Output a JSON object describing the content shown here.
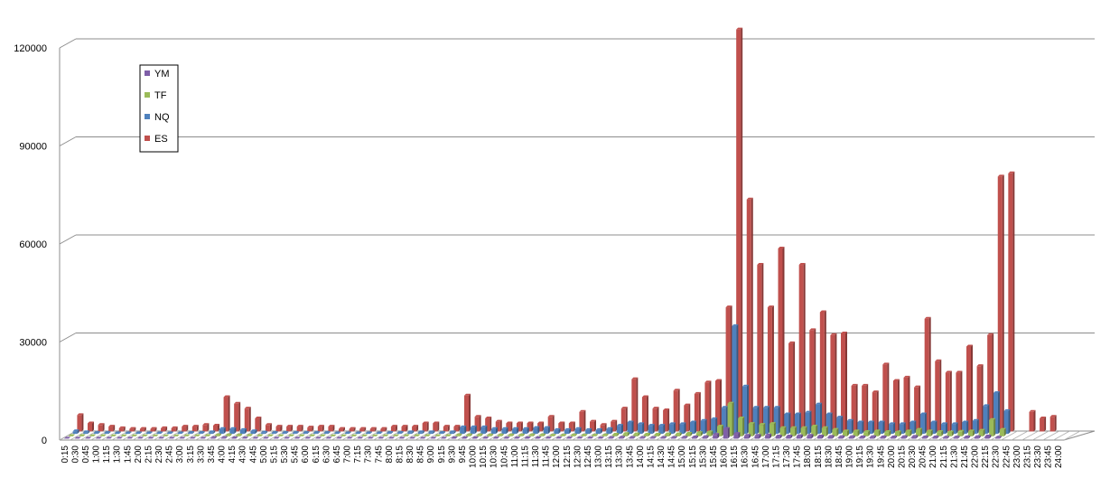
{
  "chart_data": {
    "type": "bar",
    "title": "",
    "xlabel": "",
    "ylabel": "",
    "ylim": [
      0,
      120000
    ],
    "yticks": [
      "0",
      "30000",
      "60000",
      "90000",
      "120000"
    ],
    "grid": true,
    "legend_position": "top-left",
    "categories": [
      "0:15",
      "0:30",
      "0:45",
      "1:00",
      "1:15",
      "1:30",
      "1:45",
      "2:00",
      "2:15",
      "2:30",
      "2:45",
      "3:00",
      "3:15",
      "3:30",
      "3:45",
      "4:00",
      "4:15",
      "4:30",
      "4:45",
      "5:00",
      "5:15",
      "5:30",
      "5:45",
      "6:00",
      "6:15",
      "6:30",
      "6:45",
      "7:00",
      "7:15",
      "7:30",
      "7:45",
      "8:00",
      "8:15",
      "8:30",
      "8:45",
      "9:00",
      "9:15",
      "9:30",
      "9:45",
      "10:00",
      "10:15",
      "10:30",
      "10:45",
      "11:00",
      "11:15",
      "11:30",
      "11:45",
      "12:00",
      "12:15",
      "12:30",
      "12:45",
      "13:00",
      "13:15",
      "13:30",
      "13:45",
      "14:00",
      "14:15",
      "14:30",
      "14:45",
      "15:00",
      "15:15",
      "15:30",
      "15:45",
      "16:00",
      "16:15",
      "16:30",
      "16:45",
      "17:00",
      "17:15",
      "17:30",
      "17:45",
      "18:00",
      "18:15",
      "18:30",
      "18:45",
      "19:00",
      "19:15",
      "19:30",
      "19:45",
      "20:00",
      "20:15",
      "20:30",
      "20:45",
      "21:00",
      "21:15",
      "21:30",
      "21:45",
      "22:00",
      "22:15",
      "22:30",
      "22:45",
      "23:00",
      "23:15",
      "23:30",
      "23:45",
      "24:00"
    ],
    "series": [
      {
        "name": "YM",
        "color": "#7f5fa8",
        "values": [
          50,
          50,
          30,
          30,
          20,
          20,
          20,
          20,
          20,
          20,
          20,
          30,
          30,
          50,
          200,
          200,
          150,
          100,
          50,
          30,
          30,
          30,
          30,
          30,
          30,
          20,
          20,
          20,
          20,
          20,
          30,
          30,
          50,
          50,
          50,
          30,
          50,
          150,
          150,
          150,
          120,
          120,
          120,
          120,
          150,
          150,
          100,
          100,
          120,
          100,
          100,
          120,
          200,
          300,
          250,
          200,
          200,
          250,
          250,
          300,
          400,
          500,
          1200,
          3000,
          1500,
          900,
          900,
          1000,
          700,
          700,
          800,
          900,
          700,
          600,
          500,
          500,
          400,
          500,
          400,
          400,
          500,
          600,
          400,
          400,
          300,
          350,
          400,
          500,
          700,
          300,
          0,
          0,
          0,
          0,
          0,
          0
        ]
      },
      {
        "name": "TF",
        "color": "#9bbb59",
        "values": [
          100,
          100,
          50,
          50,
          30,
          30,
          30,
          30,
          30,
          30,
          30,
          50,
          50,
          80,
          300,
          300,
          250,
          150,
          80,
          50,
          50,
          50,
          50,
          50,
          50,
          30,
          30,
          30,
          30,
          30,
          50,
          50,
          80,
          80,
          80,
          50,
          80,
          300,
          300,
          300,
          250,
          250,
          250,
          250,
          300,
          300,
          200,
          200,
          250,
          200,
          200,
          250,
          500,
          700,
          600,
          500,
          500,
          600,
          600,
          800,
          1000,
          1200,
          3000,
          10000,
          5500,
          3800,
          3500,
          3800,
          2500,
          2500,
          2500,
          3000,
          2500,
          2000,
          1500,
          1500,
          1300,
          1500,
          1300,
          1200,
          1500,
          2000,
          1500,
          1300,
          1200,
          1400,
          1500,
          1700,
          5000,
          2000,
          0,
          0,
          0,
          0,
          0,
          0
        ]
      },
      {
        "name": "NQ",
        "color": "#4f81bd",
        "values": [
          800,
          500,
          300,
          300,
          200,
          200,
          200,
          200,
          200,
          200,
          200,
          300,
          300,
          500,
          1500,
          1500,
          1200,
          800,
          400,
          300,
          300,
          300,
          300,
          300,
          300,
          200,
          200,
          200,
          200,
          200,
          300,
          300,
          500,
          500,
          500,
          300,
          500,
          2000,
          2000,
          2000,
          1500,
          1500,
          1500,
          1500,
          1800,
          1800,
          1200,
          1200,
          1500,
          1200,
          1200,
          1500,
          2500,
          3500,
          3000,
          2500,
          2500,
          3000,
          3000,
          3500,
          4000,
          4500,
          8000,
          33000,
          14500,
          8000,
          8000,
          8000,
          6000,
          6000,
          6500,
          9000,
          6000,
          5000,
          4000,
          3500,
          3500,
          3500,
          3000,
          3000,
          3500,
          6000,
          3500,
          3000,
          3000,
          3500,
          4000,
          8500,
          12500,
          7000,
          0,
          0,
          0,
          0,
          0,
          0
        ]
      },
      {
        "name": "ES",
        "color": "#c0504d",
        "values": [
          5000,
          2500,
          2000,
          1500,
          1000,
          800,
          800,
          800,
          1000,
          1000,
          1500,
          1500,
          2000,
          1800,
          10500,
          8500,
          7000,
          4000,
          2000,
          1500,
          1500,
          1500,
          1200,
          1500,
          1500,
          800,
          800,
          800,
          800,
          800,
          1500,
          1500,
          1500,
          2500,
          2500,
          1500,
          1500,
          11000,
          4500,
          4000,
          3000,
          2500,
          2500,
          2500,
          2500,
          4500,
          2500,
          2500,
          6000,
          3000,
          2000,
          3000,
          7000,
          16000,
          10500,
          7000,
          6500,
          12500,
          8000,
          11500,
          15000,
          15500,
          38000,
          123000,
          71000,
          51000,
          38000,
          56000,
          27000,
          51000,
          31000,
          36500,
          29500,
          30000,
          14000,
          14000,
          12000,
          20500,
          15500,
          16500,
          13500,
          34500,
          21500,
          18000,
          18000,
          26000,
          20000,
          29500,
          78000,
          79000,
          0,
          6000,
          4000,
          4500,
          0,
          0
        ]
      }
    ]
  }
}
